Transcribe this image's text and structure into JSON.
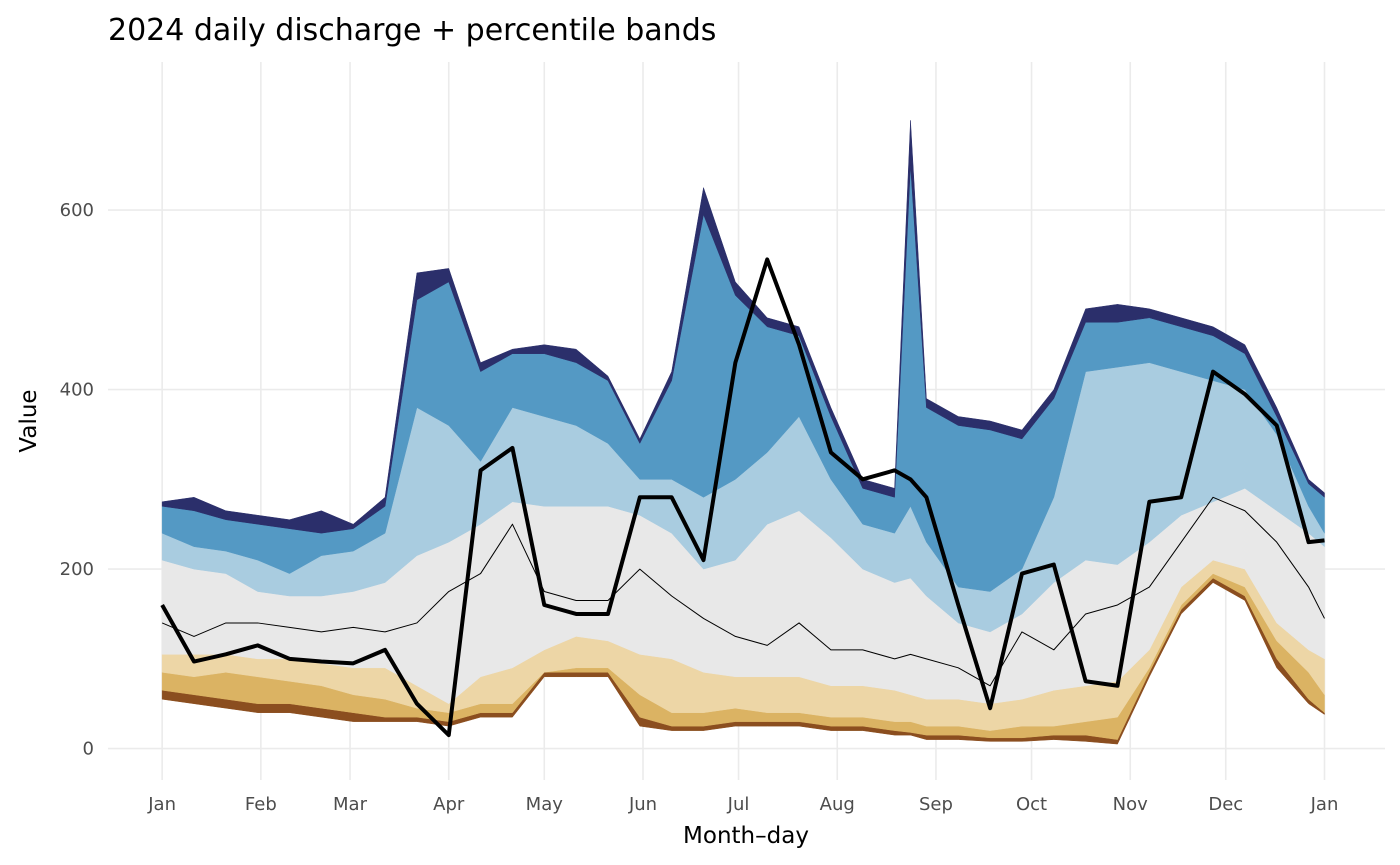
{
  "chart_data": {
    "type": "line",
    "title": "2024 daily discharge + percentile bands",
    "xlabel": "Month–day",
    "ylabel": "Value",
    "x": [
      0,
      10,
      20,
      30,
      40,
      50,
      60,
      70,
      80,
      90,
      100,
      110,
      120,
      130,
      140,
      150,
      160,
      170,
      180,
      190,
      200,
      210,
      220,
      230,
      235,
      240,
      250,
      260,
      270,
      280,
      290,
      300,
      310,
      320,
      330,
      340,
      350,
      360,
      365
    ],
    "xlim": [
      -17,
      384
    ],
    "xticks": [
      {
        "value": 0,
        "label": "Jan"
      },
      {
        "value": 31,
        "label": "Feb"
      },
      {
        "value": 59,
        "label": "Mar"
      },
      {
        "value": 90,
        "label": "Apr"
      },
      {
        "value": 120,
        "label": "May"
      },
      {
        "value": 151,
        "label": "Jun"
      },
      {
        "value": 181,
        "label": "Jul"
      },
      {
        "value": 212,
        "label": "Aug"
      },
      {
        "value": 243,
        "label": "Sep"
      },
      {
        "value": 273,
        "label": "Oct"
      },
      {
        "value": 304,
        "label": "Nov"
      },
      {
        "value": 334,
        "label": "Dec"
      },
      {
        "value": 365,
        "label": "Jan"
      }
    ],
    "ylim": [
      -35,
      765
    ],
    "yticks": [
      0,
      200,
      400,
      600
    ],
    "grid": true,
    "band_colors": [
      "#8b4e1f",
      "#dbb363",
      "#edd6a6",
      "#e8e8e8",
      "#a9cce0",
      "#5499c4",
      "#2b2f6b"
    ],
    "band_series": [
      {
        "values": [
          55,
          50,
          45,
          40,
          40,
          35,
          30,
          30,
          30,
          25,
          35,
          35,
          80,
          80,
          80,
          25,
          20,
          20,
          25,
          25,
          25,
          20,
          20,
          15,
          15,
          10,
          10,
          8,
          8,
          10,
          8,
          5,
          80,
          150,
          185,
          165,
          90,
          50,
          38
        ]
      },
      {
        "values": [
          65,
          60,
          55,
          50,
          50,
          45,
          40,
          35,
          35,
          30,
          40,
          40,
          85,
          85,
          85,
          35,
          25,
          25,
          30,
          30,
          30,
          25,
          25,
          20,
          18,
          15,
          15,
          12,
          12,
          15,
          15,
          10,
          85,
          155,
          190,
          170,
          100,
          55,
          40
        ]
      },
      {
        "values": [
          85,
          80,
          85,
          80,
          75,
          70,
          60,
          55,
          45,
          40,
          50,
          50,
          85,
          90,
          90,
          60,
          40,
          40,
          45,
          40,
          40,
          35,
          35,
          30,
          30,
          25,
          25,
          20,
          25,
          25,
          30,
          35,
          90,
          160,
          195,
          180,
          120,
          85,
          60
        ]
      },
      {
        "values": [
          105,
          105,
          105,
          100,
          100,
          95,
          90,
          90,
          70,
          50,
          80,
          90,
          110,
          125,
          120,
          105,
          100,
          85,
          80,
          80,
          80,
          70,
          70,
          65,
          60,
          55,
          55,
          50,
          55,
          65,
          70,
          75,
          110,
          180,
          210,
          200,
          140,
          110,
          100
        ]
      },
      {
        "values": [
          210,
          200,
          195,
          175,
          170,
          170,
          175,
          185,
          215,
          230,
          250,
          275,
          270,
          270,
          270,
          260,
          240,
          200,
          210,
          250,
          265,
          235,
          200,
          185,
          190,
          170,
          140,
          130,
          150,
          185,
          210,
          205,
          230,
          260,
          275,
          290,
          265,
          240,
          225
        ]
      },
      {
        "values": [
          240,
          225,
          220,
          210,
          195,
          215,
          220,
          240,
          380,
          360,
          320,
          380,
          370,
          360,
          340,
          300,
          300,
          280,
          300,
          330,
          370,
          300,
          250,
          240,
          270,
          230,
          180,
          175,
          200,
          280,
          420,
          425,
          430,
          420,
          410,
          400,
          350,
          270,
          240
        ]
      },
      {
        "values": [
          270,
          265,
          255,
          250,
          245,
          240,
          245,
          270,
          500,
          520,
          420,
          440,
          440,
          430,
          410,
          340,
          410,
          595,
          505,
          470,
          460,
          370,
          290,
          280,
          650,
          380,
          360,
          355,
          345,
          390,
          475,
          475,
          480,
          470,
          460,
          440,
          370,
          295,
          280
        ]
      },
      {
        "values": [
          275,
          280,
          265,
          260,
          255,
          265,
          250,
          280,
          530,
          535,
          430,
          445,
          450,
          445,
          415,
          345,
          420,
          625,
          520,
          480,
          470,
          380,
          300,
          290,
          700,
          390,
          370,
          365,
          355,
          400,
          490,
          495,
          490,
          480,
          470,
          450,
          380,
          300,
          285
        ]
      }
    ],
    "series": [
      {
        "color": "#000000",
        "width": 1,
        "values": [
          140,
          125,
          140,
          140,
          135,
          130,
          135,
          130,
          140,
          175,
          195,
          250,
          175,
          165,
          165,
          200,
          170,
          145,
          125,
          115,
          140,
          110,
          110,
          100,
          105,
          100,
          90,
          70,
          130,
          110,
          150,
          160,
          180,
          230,
          280,
          265,
          230,
          180,
          145
        ]
      },
      {
        "color": "#000000",
        "width": 4,
        "values": [
          160,
          97,
          105,
          115,
          100,
          97,
          95,
          110,
          50,
          15,
          310,
          335,
          160,
          150,
          150,
          280,
          280,
          210,
          430,
          545,
          450,
          330,
          300,
          310,
          300,
          280,
          160,
          45,
          195,
          205,
          75,
          70,
          275,
          280,
          420,
          395,
          360,
          230,
          232
        ]
      }
    ]
  }
}
